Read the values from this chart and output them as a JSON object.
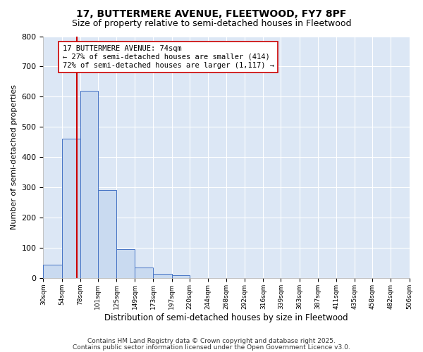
{
  "title": "17, BUTTERMERE AVENUE, FLEETWOOD, FY7 8PF",
  "subtitle": "Size of property relative to semi-detached houses in Fleetwood",
  "xlabel": "Distribution of semi-detached houses by size in Fleetwood",
  "ylabel": "Number of semi-detached properties",
  "bar_color": "#c9daf0",
  "bar_edge_color": "#4472c4",
  "plot_bg_color": "#dce7f5",
  "fig_bg_color": "#ffffff",
  "grid_color": "#ffffff",
  "annotation_line_color": "#cc0000",
  "annotation_box_edge": "#cc0000",
  "annotation_line1": "17 BUTTERMERE AVENUE: 74sqm",
  "annotation_line2": "← 27% of semi-detached houses are smaller (414)",
  "annotation_line3": "72% of semi-detached houses are larger (1,117) →",
  "property_size": 74,
  "bins": [
    30,
    54,
    78,
    101,
    125,
    149,
    173,
    197,
    220,
    244,
    268,
    292,
    316,
    339,
    363,
    387,
    411,
    435,
    458,
    482,
    506
  ],
  "bin_labels": [
    "30sqm",
    "54sqm",
    "78sqm",
    "101sqm",
    "125sqm",
    "149sqm",
    "173sqm",
    "197sqm",
    "220sqm",
    "244sqm",
    "268sqm",
    "292sqm",
    "316sqm",
    "339sqm",
    "363sqm",
    "387sqm",
    "411sqm",
    "435sqm",
    "458sqm",
    "482sqm",
    "506sqm"
  ],
  "counts": [
    45,
    460,
    620,
    290,
    95,
    35,
    13,
    8,
    0,
    0,
    0,
    0,
    0,
    0,
    0,
    0,
    0,
    0,
    0,
    0
  ],
  "ylim": [
    0,
    800
  ],
  "yticks": [
    0,
    100,
    200,
    300,
    400,
    500,
    600,
    700,
    800
  ],
  "footer_line1": "Contains HM Land Registry data © Crown copyright and database right 2025.",
  "footer_line2": "Contains public sector information licensed under the Open Government Licence v3.0.",
  "title_fontsize": 10,
  "subtitle_fontsize": 9,
  "footer_fontsize": 6.5
}
